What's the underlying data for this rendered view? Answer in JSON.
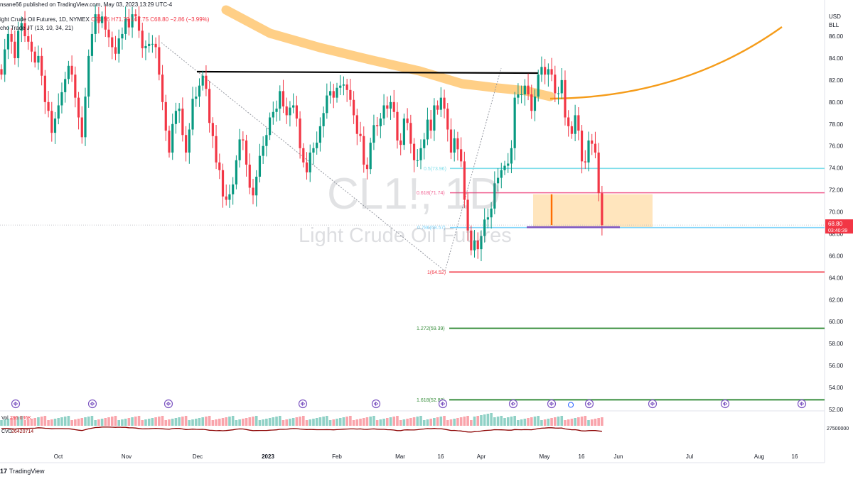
{
  "header": {
    "publisher_line": "nsane66 published on TradingView.com, May 03, 2023 13:29 UTC-4",
    "symbol_line": "ight Crude Oil Futures, 1D, NYMEX",
    "ohlc": {
      "o": "O71.56",
      "h": "H71.79",
      "l": "L67.75",
      "c": "C68.80",
      "chg": "−2.86 (−3.99%)"
    },
    "indicator_line": "cho Trade JT (13, 10, 34, 21)"
  },
  "watermark": {
    "symbol": "CL1!, 1D",
    "name": "Light Crude Oil Futures"
  },
  "branding": {
    "logo_text": "TradingView",
    "logo_mark": "17"
  },
  "colors": {
    "up": "#089981",
    "down": "#f23645",
    "cloud": "#ffcc80",
    "projection": "#f59c1a",
    "price_tag": "#f23645"
  },
  "chart_data": {
    "type": "candlestick",
    "price_axis": {
      "currency_label": "USD",
      "unit_label": "BLL",
      "range": [
        52,
        88
      ],
      "ticks": [
        "86.00",
        "84.00",
        "82.00",
        "80.00",
        "78.00",
        "76.00",
        "74.00",
        "72.00",
        "70.00",
        "68.00",
        "66.00",
        "64.00",
        "62.00",
        "60.00",
        "58.00",
        "56.00",
        "54.00",
        "52.00"
      ],
      "last_price": "68.80",
      "countdown": "03:40:39"
    },
    "time_axis": {
      "labels": [
        "Oct",
        "Nov",
        "Dec",
        "2023",
        "Feb",
        "Mar",
        "16",
        "Apr",
        "May",
        "16",
        "Jun",
        "Jul",
        "Aug",
        "16"
      ],
      "approx_range": [
        "2022-09-12",
        "2023-08-25"
      ]
    },
    "candles_close_approx": [
      82.5,
      84.8,
      86.2,
      85.5,
      84.0,
      86.5,
      87.2,
      86.0,
      85.5,
      84.6,
      83.6,
      84.2,
      82.4,
      80.0,
      79.2,
      77.2,
      78.5,
      79.7,
      80.9,
      82.1,
      83.3,
      82.5,
      80.4,
      78.6,
      76.8,
      80.5,
      84.2,
      86.2,
      88.0,
      87.2,
      87.8,
      86.6,
      85.9,
      85.0,
      84.4,
      85.8,
      86.2,
      87.6,
      86.8,
      88.0,
      87.8,
      86.5,
      84.9,
      85.1,
      85.3,
      85.3,
      85.0,
      82.5,
      80.0,
      77.4,
      75.4,
      78.0,
      79.2,
      79.4,
      77.0,
      75.4,
      77.5,
      80.3,
      80.5,
      81.5,
      82.4,
      81.2,
      78.1,
      76.9,
      74.5,
      73.8,
      71.4,
      71.1,
      71.6,
      72.5,
      74.7,
      76.6,
      76.5,
      74.3,
      72.2,
      71.5,
      73.2,
      75.1,
      76.0,
      77.0,
      78.6,
      79.1,
      79.4,
      81.0,
      79.6,
      78.8,
      79.5,
      79.7,
      78.5,
      75.8,
      74.5,
      73.6,
      75.4,
      75.8,
      76.3,
      77.8,
      79.0,
      80.6,
      81.0,
      80.4,
      81.3,
      81.5,
      81.6,
      81.1,
      80.2,
      78.8,
      77.1,
      76.9,
      74.3,
      73.9,
      76.3,
      77.9,
      77.8,
      78.5,
      79.7,
      79.4,
      80.0,
      79.1,
      76.5,
      76.1,
      78.5,
      78.1,
      76.2,
      74.7,
      74.7,
      75.8,
      76.6,
      78.4,
      77.4,
      79.7,
      79.3,
      80.4,
      79.4,
      77.5,
      75.4,
      76.7,
      75.7,
      74.6,
      71.1,
      68.3,
      66.5,
      67.4,
      66.6,
      67.8,
      69.3,
      69.5,
      70.3,
      72.6,
      73.1,
      73.8,
      74.2,
      74.4,
      75.8,
      80.4,
      80.7,
      80.7,
      81.5,
      80.7,
      79.2,
      80.5,
      82.5,
      83.2,
      82.5,
      83.0,
      82.5,
      80.8,
      80.8,
      82.0,
      78.6,
      77.8,
      77.1,
      78.8,
      77.4,
      74.6,
      74.5,
      76.5,
      76.2,
      75.4,
      71.7,
      68.8
    ],
    "overlays": {
      "resistance_line": {
        "price": 82.6,
        "from": "2022-11-29",
        "to": "2023-04-28"
      },
      "cloud_band": "thick orange moving-average band trending down from ~88 to ~80",
      "projection_curve": "orange curve rising from ~80.3 (May) to ~86.6 (Aug)",
      "fib_levels": [
        {
          "label": "0.5(73.96)",
          "price": 73.96,
          "color": "#80deea"
        },
        {
          "label": "0.618(71.74)",
          "price": 71.74,
          "color": "#f06292"
        },
        {
          "label": "0.786(68.57)",
          "price": 68.57,
          "color": "#81d4fa"
        },
        {
          "label": "1(64.52)",
          "price": 64.52,
          "color": "#f23645"
        },
        {
          "label": "1.272(59.39)",
          "price": 59.39,
          "color": "#388e3c"
        },
        {
          "label": "1.618(52.88)",
          "price": 52.88,
          "color": "#388e3c"
        }
      ],
      "target_box": {
        "price_top": 71.6,
        "price_bottom": 68.6,
        "color": "#ffe0b2"
      },
      "support_segment": {
        "price": 68.6,
        "color": "#7e57c2"
      }
    },
    "volume_pane": {
      "vol_label": "Vol",
      "vol_value": "295.036K",
      "cvd_label": "CVD",
      "cvd_value": "26420714",
      "axis_tick": "27500000"
    }
  }
}
